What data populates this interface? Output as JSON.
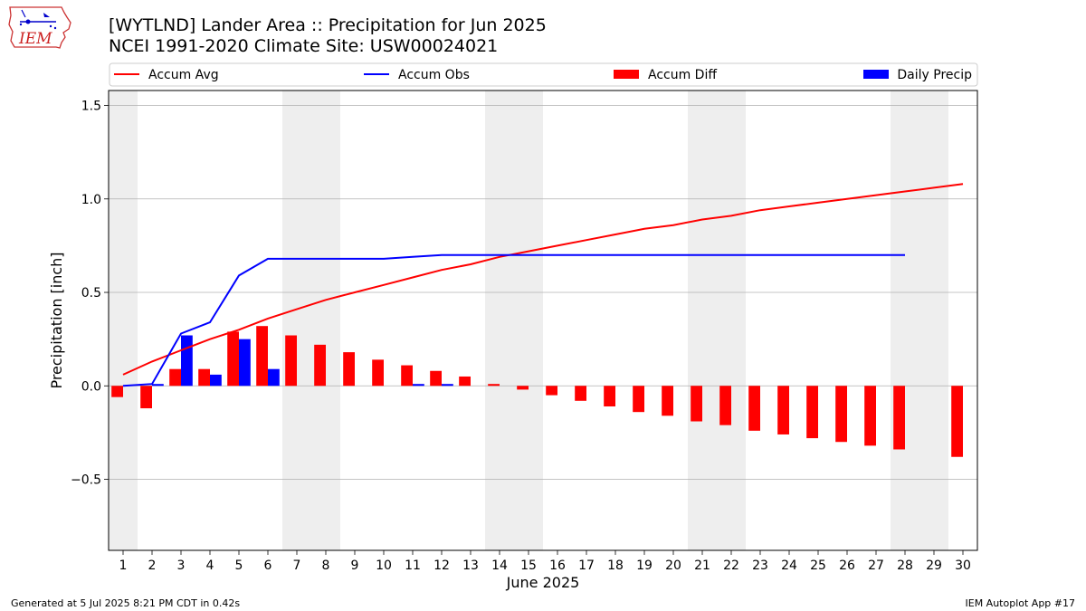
{
  "header": {
    "title_line1": "[WYTLND] Lander Area :: Precipitation for Jun 2025",
    "title_line2": "NCEI 1991-2020 Climate Site: USW00024021",
    "logo_text": "IEM"
  },
  "footer": {
    "generated": "Generated at 5 Jul 2025 8:21 PM CDT in 0.42s",
    "app": "IEM Autoplot App #17"
  },
  "colors": {
    "avg": "#ff0000",
    "obs": "#0000ff",
    "diff": "#ff0000",
    "daily": "#0000ff",
    "weekend": "#eeeeee",
    "grid": "#b0b0b0"
  },
  "chart_data": {
    "type": "bar",
    "xlabel": "June 2025",
    "ylabel": "Precipitation [inch]",
    "xlim": [
      0.5,
      30.5
    ],
    "ylim": [
      -0.88,
      1.58
    ],
    "yticks": [
      -0.5,
      0.0,
      0.5,
      1.0,
      1.5
    ],
    "ytick_labels": [
      "−0.5",
      "0.0",
      "0.5",
      "1.0",
      "1.5"
    ],
    "x": [
      1,
      2,
      3,
      4,
      5,
      6,
      7,
      8,
      9,
      10,
      11,
      12,
      13,
      14,
      15,
      16,
      17,
      18,
      19,
      20,
      21,
      22,
      23,
      24,
      25,
      26,
      27,
      28,
      29,
      30
    ],
    "weekend_days": [
      1,
      7,
      8,
      14,
      15,
      21,
      22,
      28,
      29
    ],
    "grid": "horizontal",
    "legend_position": "top",
    "legend": [
      {
        "label": "Accum Avg",
        "kind": "line",
        "color": "#ff0000"
      },
      {
        "label": "Accum Obs",
        "kind": "line",
        "color": "#0000ff"
      },
      {
        "label": "Accum Diff",
        "kind": "bar",
        "color": "#ff0000"
      },
      {
        "label": "Daily Precip",
        "kind": "bar",
        "color": "#0000ff"
      }
    ],
    "series": [
      {
        "name": "Accum Avg",
        "type": "line",
        "values": [
          0.06,
          0.13,
          0.19,
          0.25,
          0.3,
          0.36,
          0.41,
          0.46,
          0.5,
          0.54,
          0.58,
          0.62,
          0.65,
          0.69,
          0.72,
          0.75,
          0.78,
          0.81,
          0.84,
          0.86,
          0.89,
          0.91,
          0.94,
          0.96,
          0.98,
          1.0,
          1.02,
          1.04,
          1.06,
          1.08
        ]
      },
      {
        "name": "Accum Obs",
        "type": "line",
        "values": [
          0.0,
          0.01,
          0.28,
          0.34,
          0.59,
          0.68,
          0.68,
          0.68,
          0.68,
          0.68,
          0.69,
          0.7,
          0.7,
          0.7,
          0.7,
          0.7,
          0.7,
          0.7,
          0.7,
          0.7,
          0.7,
          0.7,
          0.7,
          0.7,
          0.7,
          0.7,
          0.7,
          0.7,
          null,
          null
        ]
      },
      {
        "name": "Accum Diff",
        "type": "bar",
        "values": [
          -0.06,
          -0.12,
          0.09,
          0.09,
          0.29,
          0.32,
          0.27,
          0.22,
          0.18,
          0.14,
          0.11,
          0.08,
          0.05,
          0.01,
          -0.02,
          -0.05,
          -0.08,
          -0.11,
          -0.14,
          -0.16,
          -0.19,
          -0.21,
          -0.24,
          -0.26,
          -0.28,
          -0.3,
          -0.32,
          -0.34,
          null,
          -0.38
        ]
      },
      {
        "name": "Daily Precip",
        "type": "bar",
        "values": [
          0.0,
          0.01,
          0.27,
          0.06,
          0.25,
          0.09,
          0.0,
          0.0,
          0.0,
          0.0,
          0.01,
          0.01,
          0.0,
          0.0,
          0.0,
          0.0,
          0.0,
          0.0,
          0.0,
          0.0,
          0.0,
          0.0,
          0.0,
          0.0,
          0.0,
          0.0,
          0.0,
          0.0,
          null,
          null
        ]
      }
    ]
  }
}
